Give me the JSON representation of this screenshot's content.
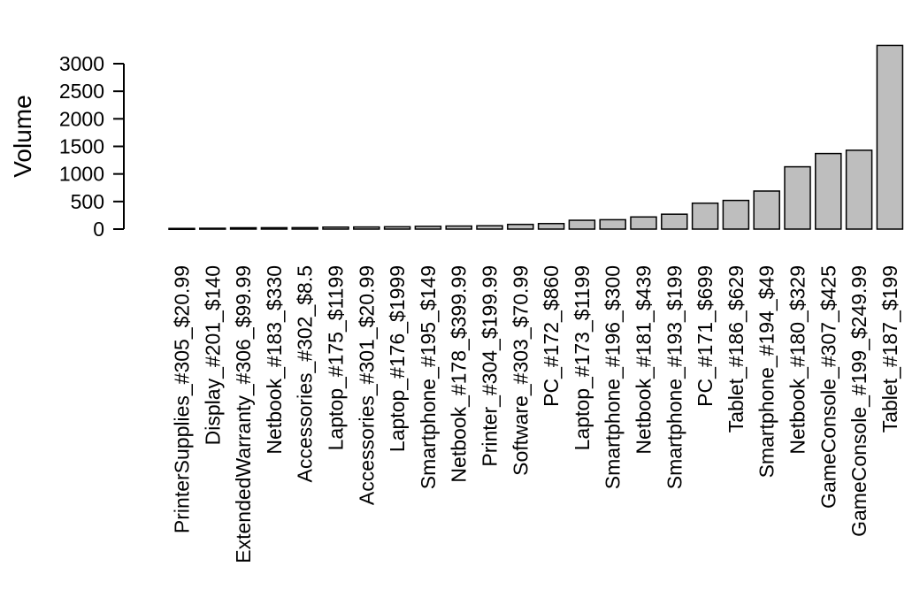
{
  "chart_data": {
    "type": "bar",
    "title": "",
    "xlabel": "",
    "ylabel": "Volume",
    "ylim": [
      0,
      3300
    ],
    "yticks": [
      "0",
      "500",
      "1000",
      "1500",
      "2000",
      "2500",
      "3000"
    ],
    "grid": false,
    "bar_color": "#bebebe",
    "bar_border_color": "#000000",
    "categories": [
      "PrinterSupplies_#305_$20.99",
      "Display_#201_$140",
      "ExtendedWarranty_#306_$99.99",
      "Netbook_#183_$330",
      "Accessories_#302_$8.5",
      "Laptop_#175_$1199",
      "Accessories_#301_$20.99",
      "Laptop_#176_$1999",
      "Smartphone_#195_$149",
      "Netbook_#178_$399.99",
      "Printer_#304_$199.99",
      "Software_#303_$70.99",
      "PC_#172_$860",
      "Laptop_#173_$1199",
      "Smartphone_#196_$300",
      "Netbook_#181_$439",
      "Smartphone_#193_$199",
      "PC_#171_$699",
      "Tablet_#186_$629",
      "Smartphone_#194_$49",
      "Netbook_#180_$329",
      "GameConsole_#307_$425",
      "GameConsole_#199_$249.99",
      "Tablet_#187_$199"
    ],
    "values": [
      12,
      15,
      24,
      25,
      26,
      36,
      38,
      42,
      50,
      55,
      60,
      85,
      100,
      160,
      170,
      220,
      270,
      470,
      520,
      690,
      1130,
      1370,
      1430,
      3330
    ]
  }
}
